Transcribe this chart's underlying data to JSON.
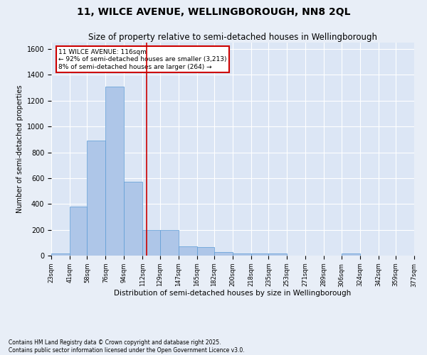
{
  "title": "11, WILCE AVENUE, WELLINGBOROUGH, NN8 2QL",
  "subtitle": "Size of property relative to semi-detached houses in Wellingborough",
  "xlabel": "Distribution of semi-detached houses by size in Wellingborough",
  "ylabel": "Number of semi-detached properties",
  "footer_line1": "Contains HM Land Registry data © Crown copyright and database right 2025.",
  "footer_line2": "Contains public sector information licensed under the Open Government Licence v3.0.",
  "bin_labels": [
    "23sqm",
    "41sqm",
    "58sqm",
    "76sqm",
    "94sqm",
    "112sqm",
    "129sqm",
    "147sqm",
    "165sqm",
    "182sqm",
    "200sqm",
    "218sqm",
    "235sqm",
    "253sqm",
    "271sqm",
    "289sqm",
    "306sqm",
    "324sqm",
    "342sqm",
    "359sqm",
    "377sqm"
  ],
  "bin_edges": [
    23,
    41,
    58,
    76,
    94,
    112,
    129,
    147,
    165,
    182,
    200,
    218,
    235,
    253,
    271,
    289,
    306,
    324,
    342,
    359,
    377
  ],
  "bar_values": [
    18,
    380,
    890,
    1310,
    570,
    200,
    200,
    70,
    65,
    25,
    15,
    15,
    15,
    0,
    0,
    0,
    15,
    0,
    0,
    0
  ],
  "bar_color": "#aec6e8",
  "bar_edge_color": "#5b9bd5",
  "marker_value": 116,
  "marker_color": "#cc0000",
  "annotation_title": "11 WILCE AVENUE: 116sqm",
  "annotation_line1": "← 92% of semi-detached houses are smaller (3,213)",
  "annotation_line2": "8% of semi-detached houses are larger (264) →",
  "annotation_box_color": "#cc0000",
  "ylim": [
    0,
    1650
  ],
  "yticks": [
    0,
    200,
    400,
    600,
    800,
    1000,
    1200,
    1400,
    1600
  ],
  "background_color": "#e8eef7",
  "plot_background_color": "#dce6f5",
  "grid_color": "#ffffff",
  "title_fontsize": 10,
  "subtitle_fontsize": 8.5
}
